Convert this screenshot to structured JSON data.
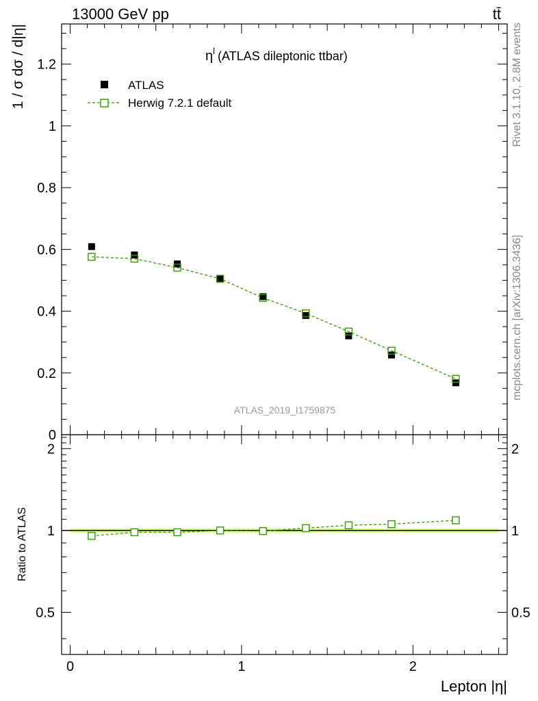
{
  "header": {
    "energy": "13000 GeV pp",
    "process": "tt̄"
  },
  "side": {
    "rivet": "Rivet 3.1.10,  2.8M events",
    "mcplots": "mcplots.cern.ch [arXiv:1306.3436]"
  },
  "chart_data": [
    {
      "type": "scatter",
      "title": "η",
      "title_superscript": "l",
      "title_suffix": "(ATLAS dileptonic ttbar)",
      "watermark": "ATLAS_2019_I1759875",
      "ylabel": "1 / σ  dσ / d|η|",
      "xlabel": "Lepton |η|",
      "xlim": [
        -0.05,
        2.55
      ],
      "ylim": [
        0,
        1.33
      ],
      "yticks": [
        "0",
        "0.2",
        "0.4",
        "0.6",
        "0.8",
        "1",
        "1.2"
      ],
      "legend_placement": "top-left",
      "x": [
        0.125,
        0.375,
        0.625,
        0.875,
        1.125,
        1.375,
        1.625,
        1.875,
        2.25
      ],
      "series": [
        {
          "name": "ATLAS",
          "style": "filled-square",
          "color": "#000000",
          "values": [
            0.609,
            0.582,
            0.553,
            0.505,
            0.447,
            0.386,
            0.32,
            0.258,
            0.168
          ]
        },
        {
          "name": "Herwig 7.2.1 default",
          "style": "open-square-dashed",
          "color": "#339900",
          "values": [
            0.576,
            0.57,
            0.541,
            0.505,
            0.443,
            0.393,
            0.334,
            0.272,
            0.181
          ]
        }
      ]
    },
    {
      "type": "line",
      "ylabel": "Ratio to ATLAS",
      "xlabel": "Lepton |η|",
      "xlim": [
        -0.05,
        2.55
      ],
      "ylim": [
        0.35,
        2.25
      ],
      "yticks": [
        "0.5",
        "1",
        "2"
      ],
      "xticks": [
        "0",
        "1",
        "2"
      ],
      "x": [
        0.125,
        0.375,
        0.625,
        0.875,
        1.125,
        1.375,
        1.625,
        1.875,
        2.25
      ],
      "series": [
        {
          "name": "Herwig 7.2.1 default",
          "color": "#339900",
          "values": [
            0.955,
            0.985,
            0.985,
            1.0,
            0.995,
            1.02,
            1.045,
            1.055,
            1.09
          ]
        }
      ],
      "band_color": "#ddff99"
    }
  ]
}
